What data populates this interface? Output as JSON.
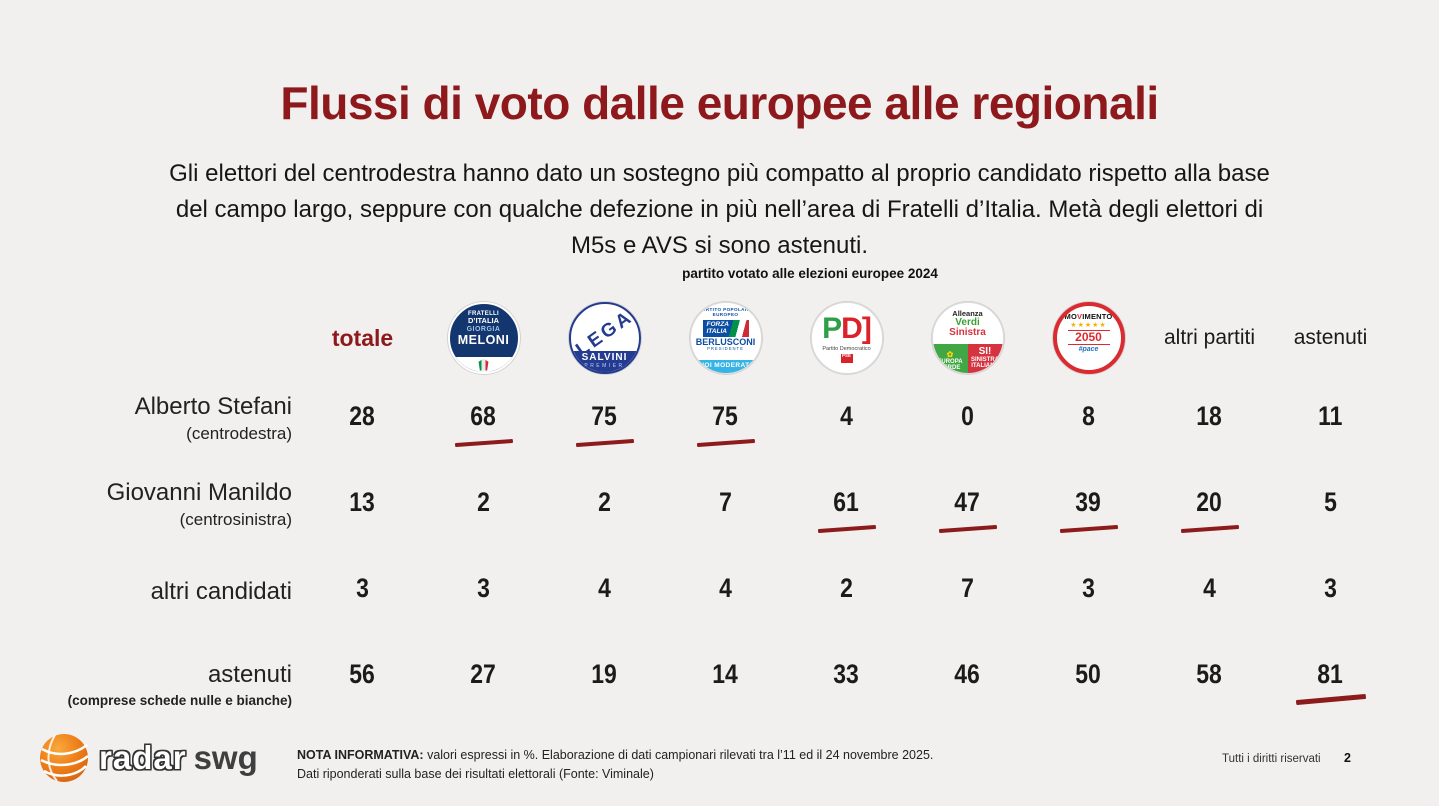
{
  "colors": {
    "accent": "#8e191c",
    "underline": "#8c1c1c",
    "background": "#f1f0ee"
  },
  "title": "Flussi di voto dalle europee alle regionali",
  "subtitle_lines": [
    "Gli elettori del centrodestra hanno dato un sostegno più compatto al proprio candidato rispetto alla base",
    "del campo largo, seppure con qualche defezione in più nell’area di Fratelli d’Italia. Metà degli elettori di",
    "M5s e AVS si sono astenuti."
  ],
  "table": {
    "header_note": "partito votato alle elezioni europee 2024",
    "columns": [
      {
        "label": "totale"
      },
      {
        "label": "Fratelli d’Italia – Giorgia Meloni"
      },
      {
        "label": "Lega – Salvini Premier"
      },
      {
        "label": "Forza Italia – Berlusconi"
      },
      {
        "label": "Partito Democratico"
      },
      {
        "label": "Alleanza Verdi Sinistra"
      },
      {
        "label": "Movimento 5 Stelle 2050"
      },
      {
        "label": "altri partiti"
      },
      {
        "label": "astenuti"
      }
    ],
    "rows": [
      {
        "name": "Alberto Stefani",
        "sub": "(centrodestra)",
        "values": [
          28,
          68,
          75,
          75,
          4,
          0,
          8,
          18,
          11
        ],
        "underlined": [
          1,
          2,
          3
        ]
      },
      {
        "name": "Giovanni Manildo",
        "sub": "(centrosinistra)",
        "values": [
          13,
          2,
          2,
          7,
          61,
          47,
          39,
          20,
          5
        ],
        "underlined": [
          4,
          5,
          6,
          7
        ]
      },
      {
        "name": "altri candidati",
        "sub": "",
        "values": [
          3,
          3,
          4,
          4,
          2,
          7,
          3,
          4,
          3
        ],
        "underlined": []
      },
      {
        "name": "astenuti",
        "sub": "(comprese schede nulle e bianche)",
        "values": [
          56,
          27,
          19,
          14,
          33,
          46,
          50,
          58,
          81
        ],
        "underlined": [
          8
        ]
      }
    ]
  },
  "logos": {
    "fdi": {
      "line1": "FRATELLI",
      "line2": "D’ITALIA",
      "line3": "GIORGIA",
      "line4": "MELONI"
    },
    "lega": {
      "main": "LEGA",
      "band": "SALVINI",
      "band_sub": "PREMIER"
    },
    "fi": {
      "arc": "PARTITO POPOLARE EUROPEO",
      "flag_line1": "FORZA",
      "flag_line2": "ITALIA",
      "name": "BERLUSCONI",
      "name_sub": "PRESIDENTE",
      "band": "NOI MODERATI"
    },
    "pd": {
      "p": "P",
      "d": "D]",
      "sub": "Partito Democratico",
      "pse": "PSE"
    },
    "avs": {
      "top1": "Alleanza",
      "top2": "Verdi",
      "top3": "Sinistra",
      "bl1": "EUROPA",
      "bl2": "VERDE",
      "bl_flower": "✿",
      "br1": "SI!",
      "br2": "SINISTRA",
      "br3": "ITALIANA"
    },
    "m5s": {
      "word_pre": "MO",
      "word_v": "V",
      "word_post": "IMENTO",
      "stars": "★★★★★",
      "year": "2050",
      "tag": "#pace"
    }
  },
  "footer": {
    "brand1": "radar",
    "brand2": "swg",
    "note_label": "NOTA INFORMATIVA:",
    "note_line1": " valori espressi in %. Elaborazione di dati campionari rilevati tra l’11 ed il 24 novembre 2025.",
    "note_line2": "Dati riponderati sulla base dei risultati elettorali (Fonte: Viminale)",
    "rights": "Tutti i diritti riservati",
    "page": "2"
  },
  "chart_data": {
    "type": "table",
    "title": "Flussi di voto dalle europee alle regionali",
    "unit": "%",
    "columns": [
      "totale",
      "Fratelli d’Italia",
      "Lega",
      "Forza Italia",
      "PD",
      "Alleanza Verdi Sinistra",
      "Movimento 5 Stelle 2050",
      "altri partiti",
      "astenuti"
    ],
    "rows": [
      {
        "label": "Alberto Stefani (centrodestra)",
        "values": [
          28,
          68,
          75,
          75,
          4,
          0,
          8,
          18,
          11
        ]
      },
      {
        "label": "Giovanni Manildo (centrosinistra)",
        "values": [
          13,
          2,
          2,
          7,
          61,
          47,
          39,
          20,
          5
        ]
      },
      {
        "label": "altri candidati",
        "values": [
          3,
          3,
          4,
          4,
          2,
          7,
          3,
          4,
          3
        ]
      },
      {
        "label": "astenuti (comprese schede nulle e bianche)",
        "values": [
          56,
          27,
          19,
          14,
          33,
          46,
          50,
          58,
          81
        ]
      }
    ]
  }
}
